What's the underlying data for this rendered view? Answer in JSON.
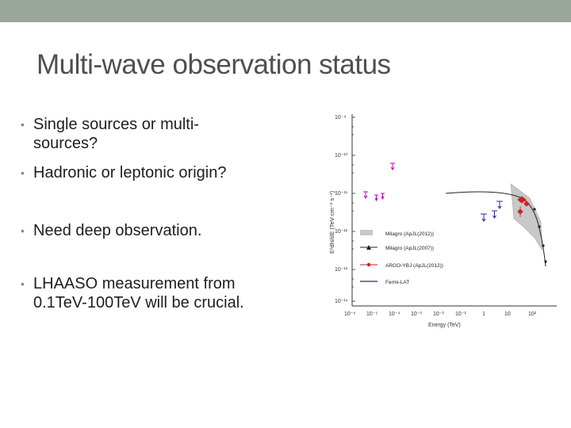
{
  "slide": {
    "title": "Multi-wave observation status",
    "colors": {
      "top_bar": "#9aa89b",
      "title": "#4f4f4f",
      "text": "#1e1e1e",
      "bullet_dot": "#7f8c7f"
    }
  },
  "bullets": [
    {
      "line1": "Single sources or multi-",
      "line2": "sources?"
    },
    {
      "line1": "Hadronic or leptonic origin?",
      "line2": ""
    },
    {
      "line1": "Need deep observation.",
      "line2": ""
    },
    {
      "line1": "LHAASO  measurement from",
      "line2": "0.1TeV-100TeV will be crucial."
    }
  ],
  "figure": {
    "ylabel": "E²dN/dE (TeV cm⁻² s⁻¹)",
    "xlabel": "Energy (TeV)",
    "y_ticks": [
      "10⁻⁹",
      "10⁻¹⁰",
      "10⁻¹¹",
      "10⁻¹²",
      "10⁻¹³",
      "10⁻¹⁴"
    ],
    "x_ticks": [
      "10⁻⁶",
      "10⁻⁵",
      "10⁻⁴",
      "10⁻³",
      "10⁻²",
      "10⁻¹",
      "1",
      "10",
      "10²"
    ],
    "legend": [
      {
        "label": "Milagro (ApJL(2012))",
        "color": "#9a9a9a"
      },
      {
        "label": "Milagro (ApJL(2007))",
        "color": "#222222"
      },
      {
        "label": "ARGO-YBJ (ApJL(2012))",
        "color": "#cc2222"
      },
      {
        "label": "Fermi-LAT",
        "color": "#1b2a8c"
      }
    ],
    "series_colors": {
      "magenta": "#c000c0",
      "blue": "#2a2aa0",
      "red": "#cc2222",
      "band": "#c8c8c8"
    }
  }
}
